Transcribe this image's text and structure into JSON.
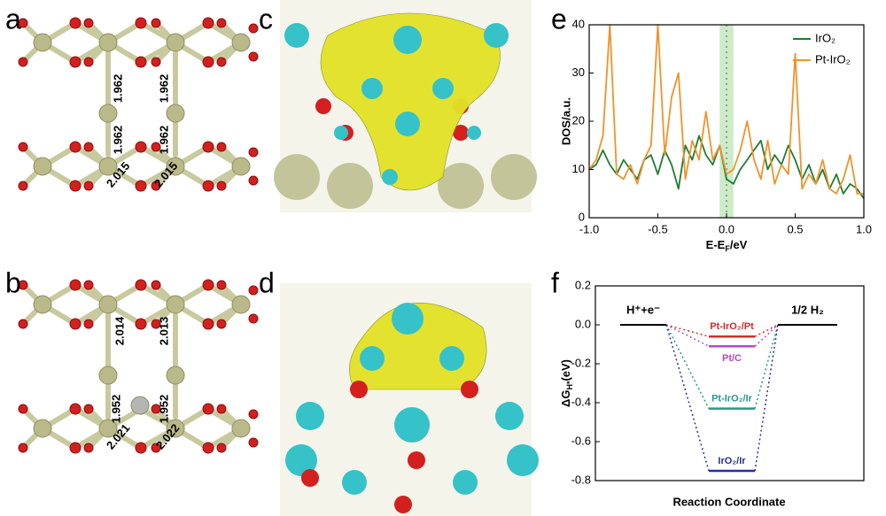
{
  "panel_labels": [
    "a",
    "b",
    "c",
    "d",
    "e",
    "f"
  ],
  "structures": {
    "a": {
      "bond_labels": [
        "1.962",
        "1.962",
        "1.962",
        "1.962",
        "2.015",
        "2.015"
      ]
    },
    "b": {
      "bond_labels": [
        "2.014",
        "2.013",
        "1.952",
        "1.952",
        "2.021",
        "2.022"
      ]
    }
  },
  "chart_data": [
    {
      "type": "line",
      "xlabel": [
        "E-E",
        "F",
        "/eV"
      ],
      "ylabel": "DOS/a.u.",
      "xlim": [
        -1,
        1
      ],
      "ylim": [
        0,
        40
      ],
      "xticks": [
        {
          "value": -1,
          "label": "-1.0"
        },
        -0.5,
        {
          "value": 0,
          "label": "0.0"
        },
        0.5,
        {
          "value": 1,
          "label": "1.0"
        }
      ],
      "yticks": [
        0,
        10,
        20,
        30,
        40
      ],
      "legend": "upper right",
      "reference_x": 0,
      "highlight_xlim": [
        -0.05,
        0.05
      ],
      "x": [
        -1,
        -0.95,
        -0.9,
        -0.85,
        -0.8,
        -0.75,
        -0.7,
        -0.65,
        -0.6,
        -0.55,
        -0.5,
        -0.45,
        -0.4,
        -0.35,
        -0.3,
        -0.25,
        -0.2,
        -0.15,
        -0.1,
        -0.05,
        0,
        0.05,
        0.1,
        0.15,
        0.2,
        0.25,
        0.3,
        0.35,
        0.4,
        0.45,
        0.5,
        0.55,
        0.6,
        0.65,
        0.7,
        0.75,
        0.8,
        0.85,
        0.9,
        0.95,
        1
      ],
      "series": [
        {
          "name": "IrO₂",
          "color": "#1e7d32",
          "values": [
            10,
            11,
            14,
            11,
            9,
            12,
            10,
            8,
            12,
            13,
            9,
            14,
            11,
            6,
            15,
            12,
            17,
            13,
            11,
            15,
            8,
            7,
            10,
            12,
            14,
            16,
            10,
            13,
            11,
            15,
            12,
            8,
            11,
            7,
            10,
            6,
            9,
            5,
            7,
            6,
            4
          ]
        },
        {
          "name": "Pt-IrO₂",
          "color": "#f0932b",
          "values": [
            10,
            12,
            17,
            40,
            9,
            8,
            11,
            7,
            12,
            15,
            40,
            13,
            25,
            30,
            8,
            16,
            12,
            22,
            12,
            15,
            9,
            10,
            14,
            20,
            12,
            8,
            16,
            7,
            11,
            9,
            34,
            6,
            9,
            7,
            12,
            6,
            5,
            8,
            13,
            5,
            5
          ]
        }
      ]
    },
    {
      "type": "energy_diagram",
      "xlabel": "Reaction Coordinate",
      "ylabel": [
        "ΔG",
        "H*",
        "(eV)"
      ],
      "ylim": [
        -0.8,
        0.2
      ],
      "yticks": [
        0.2,
        {
          "value": 0,
          "label": "0.0"
        },
        -0.2,
        -0.4,
        -0.6,
        -0.8
      ],
      "start": {
        "label": "H⁺+e⁻",
        "value": 0
      },
      "end": {
        "label": "1/2 H₂",
        "value": 0
      },
      "levels": [
        {
          "label": "Pt-IrO₂/Pt",
          "value": -0.06,
          "color": "#d62b2b"
        },
        {
          "label": "Pt/C",
          "value": -0.11,
          "color": "#b548c6"
        },
        {
          "label": "Pt-IrO₂/Ir",
          "value": -0.43,
          "color": "#239a8a"
        },
        {
          "label": "IrO₂/Ir",
          "value": -0.75,
          "color": "#2a2f9c"
        }
      ]
    }
  ]
}
